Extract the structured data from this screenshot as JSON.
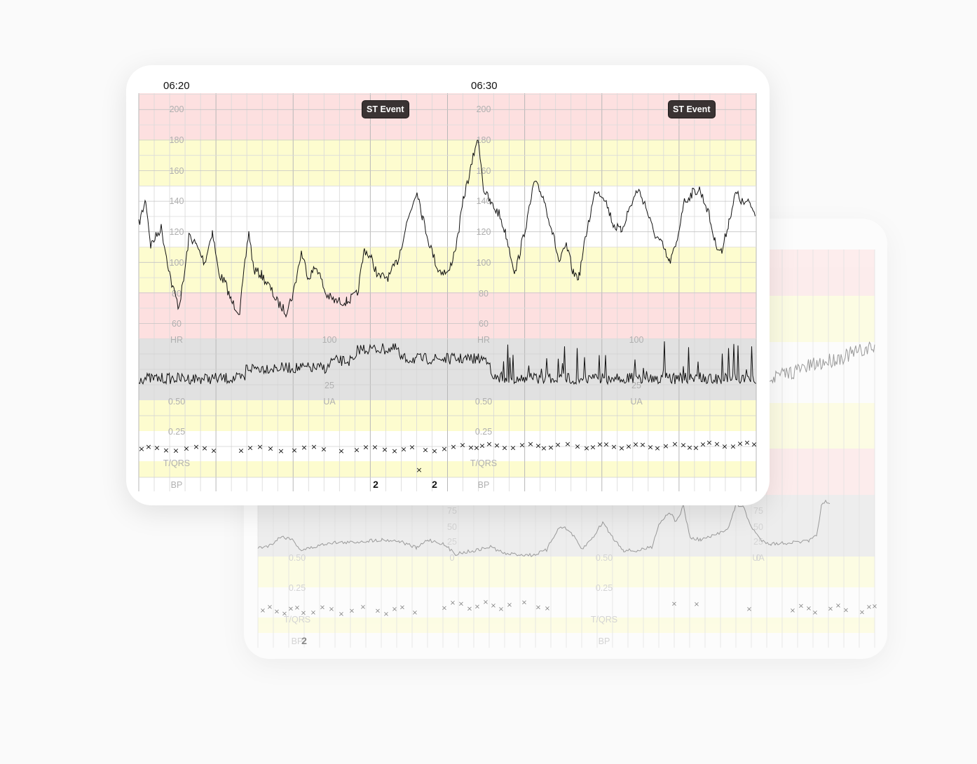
{
  "colors": {
    "red_band": "#fde0e0",
    "yellow_band": "#fdfccf",
    "gray_band": "#e1e1e1",
    "trace": "#111111",
    "badge_bg": "#3a3333"
  },
  "front": {
    "time_labels": [
      "06:20",
      "06:30"
    ],
    "events": [
      "ST Event",
      "ST Event"
    ],
    "hr_axis_ticks": [
      "200",
      "180",
      "160",
      "140",
      "120",
      "100",
      "80",
      "60"
    ],
    "hr_label": "HR",
    "ua_ticks": [
      "100",
      "25"
    ],
    "ua_label": "UA",
    "tqrs_ticks": [
      "0.50",
      "0.25"
    ],
    "tqrs_label": "T/QRS",
    "bp_label": "BP",
    "bp_values": [
      "2",
      "2"
    ]
  },
  "back": {
    "ua_ticks": [
      "75",
      "50",
      "25",
      "0"
    ],
    "ua_label": "UA",
    "tqrs_ticks": [
      "0.50",
      "0.25"
    ],
    "tqrs_label": "T/QRS",
    "bp_label": "BP",
    "bp_values": [
      "2"
    ]
  }
}
